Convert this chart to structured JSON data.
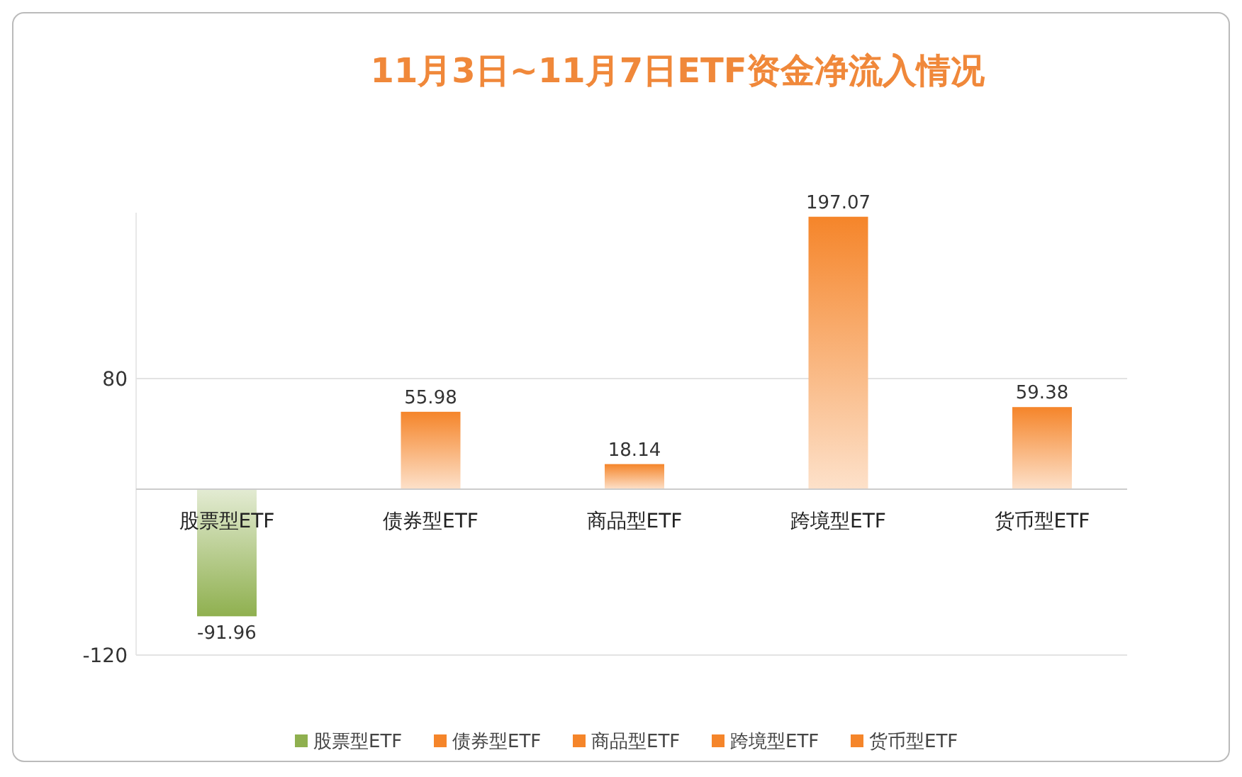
{
  "chart_data": {
    "type": "bar",
    "title": "11月3日~11月7日ETF资金净流入情况",
    "categories": [
      "股票型ETF",
      "债券型ETF",
      "商品型ETF",
      "跨境型ETF",
      "货币型ETF"
    ],
    "series": [
      {
        "name": "股票型ETF",
        "color": "#8fb04f",
        "values": [
          -91.96,
          null,
          null,
          null,
          null
        ]
      },
      {
        "name": "债券型ETF",
        "color": "#f5852a",
        "values": [
          null,
          55.98,
          null,
          null,
          null
        ]
      },
      {
        "name": "商品型ETF",
        "color": "#f5852a",
        "values": [
          null,
          null,
          18.14,
          null,
          null
        ]
      },
      {
        "name": "跨境型ETF",
        "color": "#f5852a",
        "values": [
          null,
          null,
          null,
          197.07,
          null
        ]
      },
      {
        "name": "货币型ETF",
        "color": "#f5852a",
        "values": [
          null,
          null,
          null,
          null,
          59.38
        ]
      }
    ],
    "ylim": [
      -120,
      200
    ],
    "yticks": [
      -120,
      80
    ],
    "grid": "y",
    "data_labels": true,
    "legend": "bottom"
  }
}
